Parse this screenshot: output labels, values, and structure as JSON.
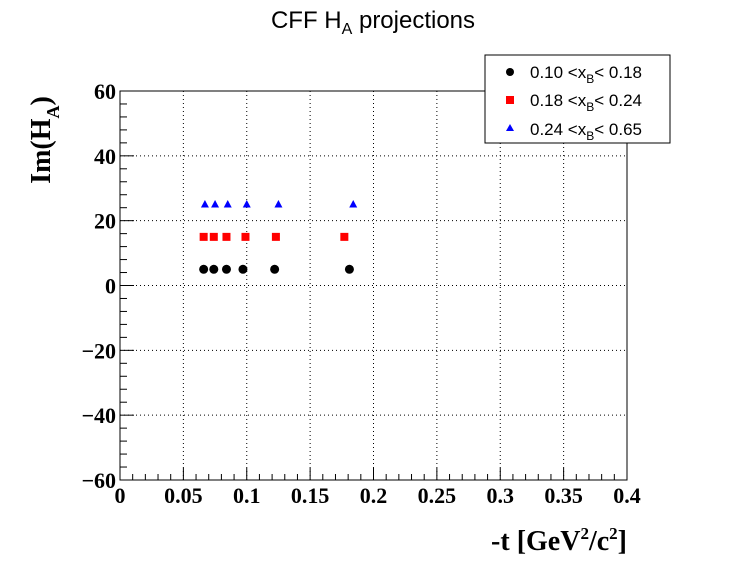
{
  "chart_data": {
    "type": "scatter",
    "title": {
      "main": "CFF H",
      "sub": "A",
      "rest": " projections"
    },
    "xlabel": {
      "pre": "-t [GeV",
      "sup1": "2",
      "mid": "/c",
      "sup2": "2",
      "post": "]"
    },
    "ylabel": {
      "pre": "Im(H",
      "sub": "A",
      "post": ")"
    },
    "xlim": [
      0,
      0.4
    ],
    "ylim": [
      -60,
      60
    ],
    "xticks": [
      0,
      0.05,
      0.1,
      0.15,
      0.2,
      0.25,
      0.3,
      0.35,
      0.4
    ],
    "xtick_labels": [
      "0",
      "0.05",
      "0.1",
      "0.15",
      "0.2",
      "0.25",
      "0.3",
      "0.35",
      "0.4"
    ],
    "yticks": [
      -60,
      -40,
      -20,
      0,
      20,
      40,
      60
    ],
    "ytick_labels": [
      "−60",
      "−40",
      "−20",
      "0",
      "20",
      "40",
      "60"
    ],
    "grid": true,
    "legend_position": "top-right",
    "series": [
      {
        "legend": {
          "pre": "0.10 <x",
          "sub": "B",
          "post": "< 0.18"
        },
        "marker": "circle",
        "color": "#000000",
        "x": [
          0.066,
          0.074,
          0.084,
          0.097,
          0.122,
          0.181
        ],
        "y": [
          5,
          5,
          5,
          5,
          5,
          5
        ]
      },
      {
        "legend": {
          "pre": "0.18 <x",
          "sub": "B",
          "post": "< 0.24"
        },
        "marker": "square",
        "color": "#ff0000",
        "x": [
          0.066,
          0.074,
          0.084,
          0.099,
          0.123,
          0.177
        ],
        "y": [
          15,
          15,
          15,
          15,
          15,
          15
        ]
      },
      {
        "legend": {
          "pre": "0.24 <x",
          "sub": "B",
          "post": "< 0.65"
        },
        "marker": "triangle",
        "color": "#0000ff",
        "x": [
          0.067,
          0.075,
          0.085,
          0.1,
          0.125,
          0.184
        ],
        "y": [
          25,
          25,
          25,
          25,
          25,
          25
        ]
      }
    ]
  }
}
